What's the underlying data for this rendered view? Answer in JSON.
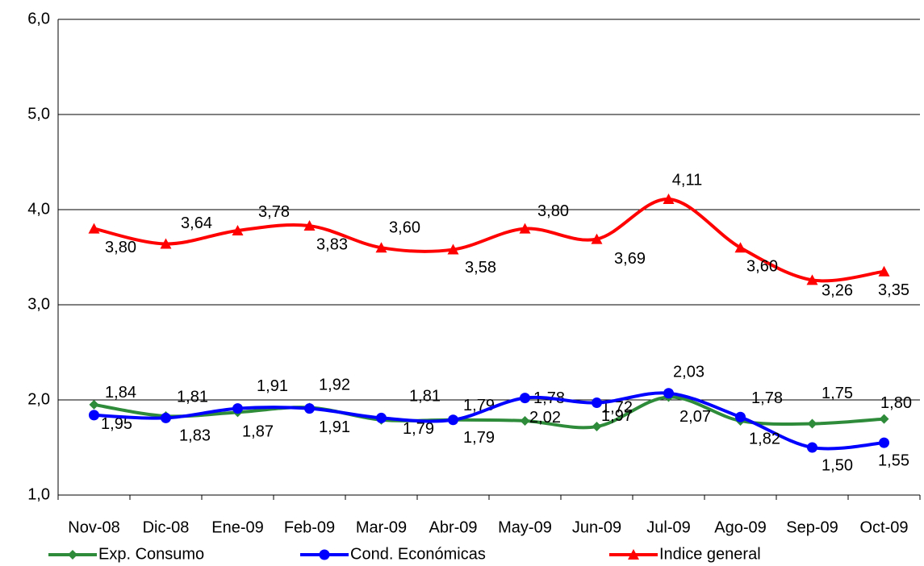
{
  "chart_data": {
    "type": "line",
    "categories": [
      "Nov-08",
      "Dic-08",
      "Ene-09",
      "Feb-09",
      "Mar-09",
      "Abr-09",
      "May-09",
      "Jun-09",
      "Jul-09",
      "Ago-09",
      "Sep-09",
      "Oct-09"
    ],
    "ylim": [
      1,
      6
    ],
    "yticks": [
      {
        "value": 1,
        "label": "1,0"
      },
      {
        "value": 2,
        "label": "2,0"
      },
      {
        "value": 3,
        "label": "3,0"
      },
      {
        "value": 4,
        "label": "4,0"
      },
      {
        "value": 5,
        "label": "5,0"
      },
      {
        "value": 6,
        "label": "6,0"
      }
    ],
    "grid": true,
    "legend": "bottom",
    "series": [
      {
        "name": "Exp. Consumo",
        "color": "#2e8b3a",
        "marker": "diamond",
        "values": [
          1.95,
          1.83,
          1.87,
          1.92,
          1.79,
          1.79,
          1.78,
          1.72,
          2.03,
          1.78,
          1.75,
          1.8
        ],
        "value_labels": [
          "1,95",
          "1,83",
          "1,87",
          "1,92",
          "1,79",
          "1,79",
          "1,78",
          "1,72",
          "2,03",
          "1,78",
          "1,75",
          "1,80"
        ]
      },
      {
        "name": "Cond. Económicas",
        "color": "#0000ff",
        "marker": "circle",
        "values": [
          1.84,
          1.81,
          1.91,
          1.91,
          1.81,
          1.79,
          2.02,
          1.97,
          2.07,
          1.82,
          1.5,
          1.55
        ],
        "value_labels": [
          "1,84",
          "1,81",
          "1,91",
          "1,91",
          "1,81",
          "1,79",
          "2,02",
          "1,97",
          "2,07",
          "1,82",
          "1,50",
          "1,55"
        ]
      },
      {
        "name": "Indice general",
        "color": "#ff0000",
        "marker": "triangle",
        "values": [
          3.8,
          3.64,
          3.78,
          3.83,
          3.6,
          3.58,
          3.8,
          3.69,
          4.11,
          3.6,
          3.26,
          3.35
        ],
        "value_labels": [
          "3,80",
          "3,64",
          "3,78",
          "3,83",
          "3,60",
          "3,58",
          "3,80",
          "3,69",
          "4,11",
          "3,60",
          "3,26",
          "3,35"
        ]
      }
    ]
  }
}
